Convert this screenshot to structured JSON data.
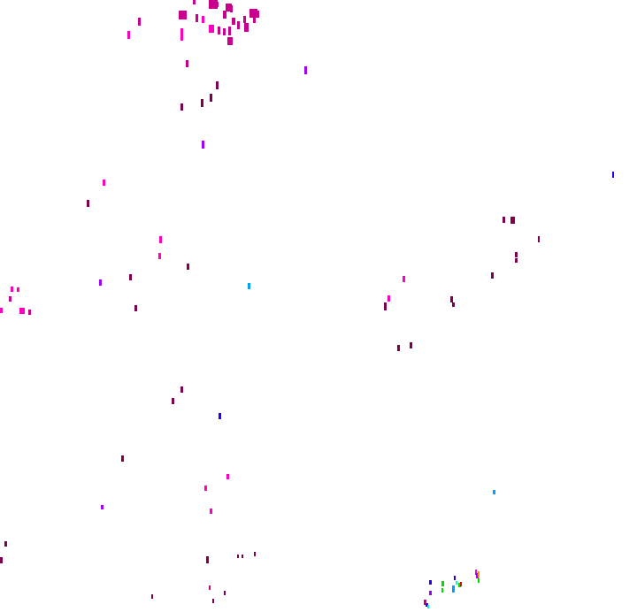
{
  "background": "#ffffff",
  "palette": {
    "magenta": "#c8008c",
    "pink": "#ff00c0",
    "maroon": "#800050",
    "purple": "#a000ff",
    "blue": "#2000ff",
    "cyan": "#00a0ff",
    "green": "#00e000",
    "red": "#e00000",
    "orange": "#ff9000",
    "teal": "#00ffc0"
  }
}
